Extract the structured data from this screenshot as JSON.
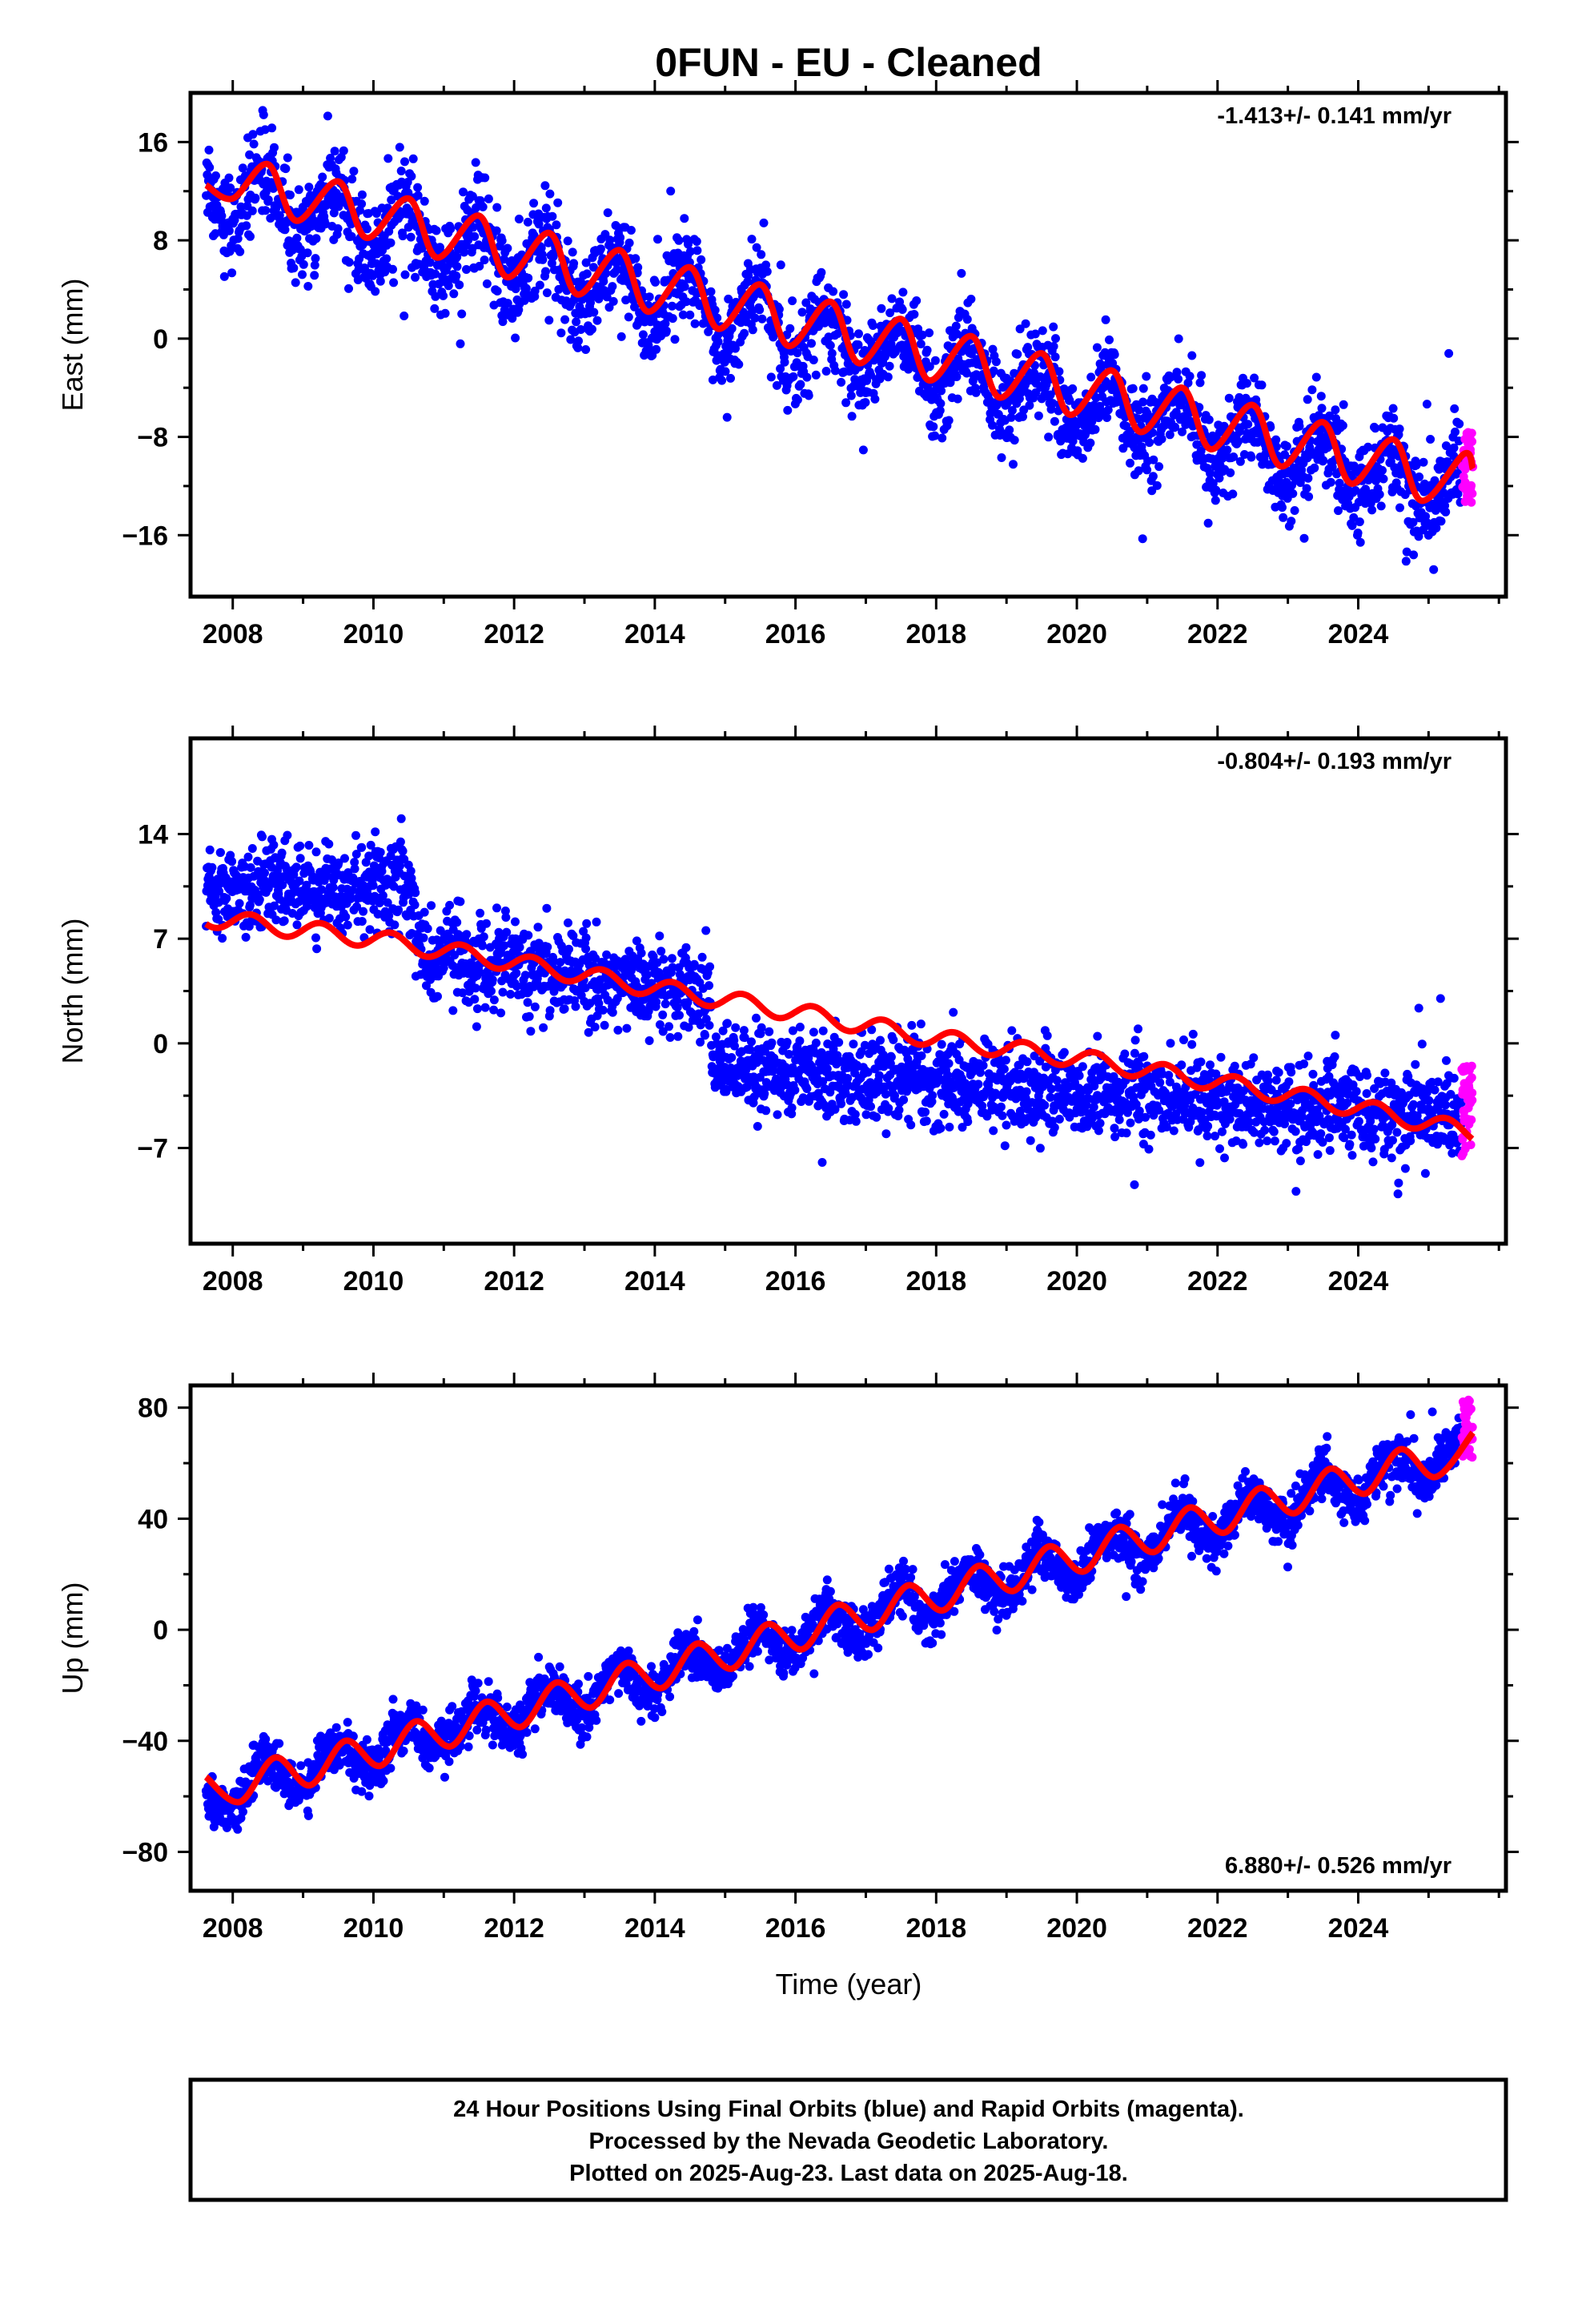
{
  "title": "0FUN  - EU - Cleaned",
  "x_axis_label": "Time (year)",
  "footer_lines": [
    "24 Hour Positions Using Final Orbits (blue) and Rapid Orbits (magenta).",
    "Processed by the Nevada Geodetic Laboratory.",
    "Plotted on 2025-Aug-23. Last data on 2025-Aug-18."
  ],
  "colors": {
    "final_orbits": "#0000ff",
    "rapid_orbits": "#ff00ff",
    "model": "#ff0000",
    "axes": "#000000"
  },
  "chart_data": [
    {
      "type": "scatter",
      "ylabel": "East (mm)",
      "rate_label": "-1.413+/- 0.141 mm/yr",
      "rate_position": "top-right",
      "xlim": [
        2007.4,
        2026.1
      ],
      "ylim": [
        -21,
        20
      ],
      "xticks": [
        2008,
        2010,
        2012,
        2014,
        2016,
        2018,
        2020,
        2022,
        2024
      ],
      "yticks": [
        16,
        8,
        0,
        -8,
        -16
      ],
      "ytick_labels": [
        "16",
        "8",
        "0",
        "−8",
        "−16"
      ],
      "grid": false,
      "series": [
        {
          "name": "24 Hour Positions (final orbits)",
          "color": "#0000ff",
          "x_range": [
            2007.62,
            2025.47
          ],
          "trend_start": 12.5,
          "rate_mm_per_yr": -1.413,
          "seasonal_amplitude": 2.4,
          "scatter_sd": 1.9
        },
        {
          "name": "24 Hour Positions (rapid orbits)",
          "color": "#ff00ff",
          "x_range": [
            2025.47,
            2025.63
          ],
          "y_range": [
            -13.5,
            -7.5
          ]
        },
        {
          "name": "Model fit",
          "color": "#ff0000",
          "type": "line",
          "points": [
            [
              2007.62,
              12.5
            ],
            [
              2008.0,
              11.4
            ],
            [
              2008.5,
              14.2
            ],
            [
              2008.9,
              9.6
            ],
            [
              2009.5,
              12.8
            ],
            [
              2009.9,
              8.2
            ],
            [
              2010.5,
              11.4
            ],
            [
              2010.9,
              6.6
            ],
            [
              2011.5,
              10.0
            ],
            [
              2011.9,
              5.0
            ],
            [
              2012.5,
              8.6
            ],
            [
              2012.9,
              3.6
            ],
            [
              2013.5,
              7.2
            ],
            [
              2013.9,
              2.2
            ],
            [
              2014.5,
              5.8
            ],
            [
              2014.9,
              0.8
            ],
            [
              2015.5,
              4.4
            ],
            [
              2015.9,
              -0.6
            ],
            [
              2016.5,
              3.0
            ],
            [
              2016.9,
              -2.0
            ],
            [
              2017.5,
              1.6
            ],
            [
              2017.9,
              -3.4
            ],
            [
              2018.5,
              0.2
            ],
            [
              2018.9,
              -4.8
            ],
            [
              2019.5,
              -1.2
            ],
            [
              2019.9,
              -6.2
            ],
            [
              2020.5,
              -2.6
            ],
            [
              2020.9,
              -7.6
            ],
            [
              2021.5,
              -4.0
            ],
            [
              2021.9,
              -9.0
            ],
            [
              2022.5,
              -5.4
            ],
            [
              2022.9,
              -10.4
            ],
            [
              2023.5,
              -6.8
            ],
            [
              2023.9,
              -11.8
            ],
            [
              2024.5,
              -8.2
            ],
            [
              2024.9,
              -13.2
            ],
            [
              2025.5,
              -9.4
            ],
            [
              2025.63,
              -10.6
            ]
          ]
        }
      ]
    },
    {
      "type": "scatter",
      "ylabel": "North (mm)",
      "rate_label": "-0.804+/- 0.193 mm/yr",
      "rate_position": "top-right",
      "xlim": [
        2007.4,
        2026.1
      ],
      "ylim": [
        -13.4,
        20.4
      ],
      "xticks": [
        2008,
        2010,
        2012,
        2014,
        2016,
        2018,
        2020,
        2022,
        2024
      ],
      "yticks": [
        14,
        7,
        0,
        -7
      ],
      "ytick_labels": [
        "14",
        "7",
        "0",
        "−7"
      ],
      "grid": false,
      "series": [
        {
          "name": "24 Hour Positions (final orbits)",
          "color": "#0000ff",
          "x_range": [
            2007.62,
            2025.47
          ],
          "offset_segments": [
            {
              "x_range": [
                2007.62,
                2010.6
              ],
              "y_start": 10.5,
              "y_end": 10.5
            },
            {
              "x_range": [
                2010.6,
                2014.8
              ],
              "y_start": 6.0,
              "y_end": 3.5
            },
            {
              "x_range": [
                2014.8,
                2025.47
              ],
              "y_start": -1.5,
              "y_end": -5.0
            }
          ],
          "scatter_sd": 1.5
        },
        {
          "name": "24 Hour Positions (rapid orbits)",
          "color": "#ff00ff",
          "x_range": [
            2025.47,
            2025.63
          ],
          "y_range": [
            -8.0,
            -1.3
          ]
        },
        {
          "name": "Model fit",
          "color": "#ff0000",
          "type": "line",
          "points": [
            [
              2007.62,
              8.4
            ],
            [
              2010.0,
              7.0
            ],
            [
              2012.0,
              5.4
            ],
            [
              2014.0,
              3.7
            ],
            [
              2016.0,
              2.1
            ],
            [
              2018.0,
              0.3
            ],
            [
              2020.0,
              -1.0
            ],
            [
              2022.0,
              -2.6
            ],
            [
              2024.0,
              -4.3
            ],
            [
              2025.63,
              -6.0
            ]
          ],
          "seasonal_amplitude": 0.6
        }
      ]
    },
    {
      "type": "scatter",
      "ylabel": "Up (mm)",
      "rate_label": "6.880+/- 0.526 mm/yr",
      "rate_position": "bottom-right",
      "xlim": [
        2007.4,
        2026.1
      ],
      "ylim": [
        -94,
        88
      ],
      "xticks": [
        2008,
        2010,
        2012,
        2014,
        2016,
        2018,
        2020,
        2022,
        2024
      ],
      "yticks": [
        80,
        40,
        0,
        -40,
        -80
      ],
      "ytick_labels": [
        "80",
        "40",
        "0",
        "−40",
        "−80"
      ],
      "grid": false,
      "series": [
        {
          "name": "24 Hour Positions (final orbits)",
          "color": "#0000ff",
          "x_range": [
            2007.62,
            2025.47
          ],
          "trend_start": -60,
          "rate_mm_per_yr": 6.88,
          "seasonal_amplitude": 6.5,
          "scatter_sd": 4.5
        },
        {
          "name": "24 Hour Positions (rapid orbits)",
          "color": "#ff00ff",
          "x_range": [
            2025.47,
            2025.63
          ],
          "y_range": [
            62,
            84
          ]
        },
        {
          "name": "Model fit",
          "color": "#ff0000",
          "type": "line",
          "points": [
            [
              2007.62,
              -53
            ],
            [
              2008.1,
              -62
            ],
            [
              2008.6,
              -46
            ],
            [
              2009.1,
              -56
            ],
            [
              2009.6,
              -40
            ],
            [
              2010.1,
              -49
            ],
            [
              2010.6,
              -33
            ],
            [
              2011.1,
              -42
            ],
            [
              2011.6,
              -26
            ],
            [
              2012.1,
              -35
            ],
            [
              2012.6,
              -19
            ],
            [
              2013.1,
              -28
            ],
            [
              2013.6,
              -12
            ],
            [
              2014.1,
              -21
            ],
            [
              2014.6,
              -5
            ],
            [
              2015.1,
              -14
            ],
            [
              2015.6,
              2
            ],
            [
              2016.1,
              -7
            ],
            [
              2016.6,
              9
            ],
            [
              2017.1,
              0
            ],
            [
              2017.6,
              16
            ],
            [
              2018.1,
              7
            ],
            [
              2018.6,
              23
            ],
            [
              2019.1,
              14
            ],
            [
              2019.6,
              30
            ],
            [
              2020.1,
              21
            ],
            [
              2020.6,
              37
            ],
            [
              2021.1,
              28
            ],
            [
              2021.6,
              44
            ],
            [
              2022.1,
              35
            ],
            [
              2022.6,
              51
            ],
            [
              2023.1,
              42
            ],
            [
              2023.6,
              58
            ],
            [
              2024.1,
              49
            ],
            [
              2024.6,
              65
            ],
            [
              2025.1,
              55
            ],
            [
              2025.63,
              71
            ]
          ]
        }
      ]
    }
  ]
}
